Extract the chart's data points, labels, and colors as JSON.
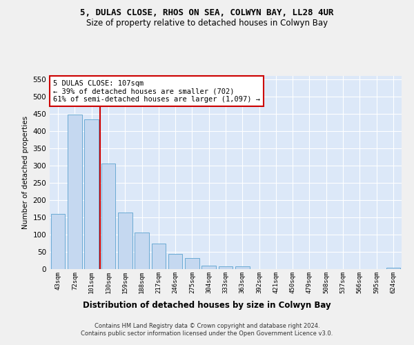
{
  "title1": "5, DULAS CLOSE, RHOS ON SEA, COLWYN BAY, LL28 4UR",
  "title2": "Size of property relative to detached houses in Colwyn Bay",
  "xlabel": "Distribution of detached houses by size in Colwyn Bay",
  "ylabel": "Number of detached properties",
  "categories": [
    "43sqm",
    "72sqm",
    "101sqm",
    "130sqm",
    "159sqm",
    "188sqm",
    "217sqm",
    "246sqm",
    "275sqm",
    "304sqm",
    "333sqm",
    "363sqm",
    "392sqm",
    "421sqm",
    "450sqm",
    "479sqm",
    "508sqm",
    "537sqm",
    "566sqm",
    "595sqm",
    "624sqm"
  ],
  "values": [
    160,
    448,
    435,
    307,
    165,
    107,
    74,
    44,
    32,
    10,
    9,
    8,
    1,
    1,
    0,
    0,
    0,
    0,
    0,
    0,
    4
  ],
  "bar_color": "#c5d8f0",
  "bar_edge_color": "#6aaad4",
  "bg_color": "#dce8f8",
  "grid_color": "#ffffff",
  "vline_x": 2.5,
  "vline_color": "#cc0000",
  "annotation_text": "5 DULAS CLOSE: 107sqm\n← 39% of detached houses are smaller (702)\n61% of semi-detached houses are larger (1,097) →",
  "annotation_box_color": "#cc0000",
  "footnote": "Contains HM Land Registry data © Crown copyright and database right 2024.\nContains public sector information licensed under the Open Government Licence v3.0.",
  "fig_bg": "#f0f0f0",
  "ylim": [
    0,
    560
  ],
  "yticks": [
    0,
    50,
    100,
    150,
    200,
    250,
    300,
    350,
    400,
    450,
    500,
    550
  ]
}
